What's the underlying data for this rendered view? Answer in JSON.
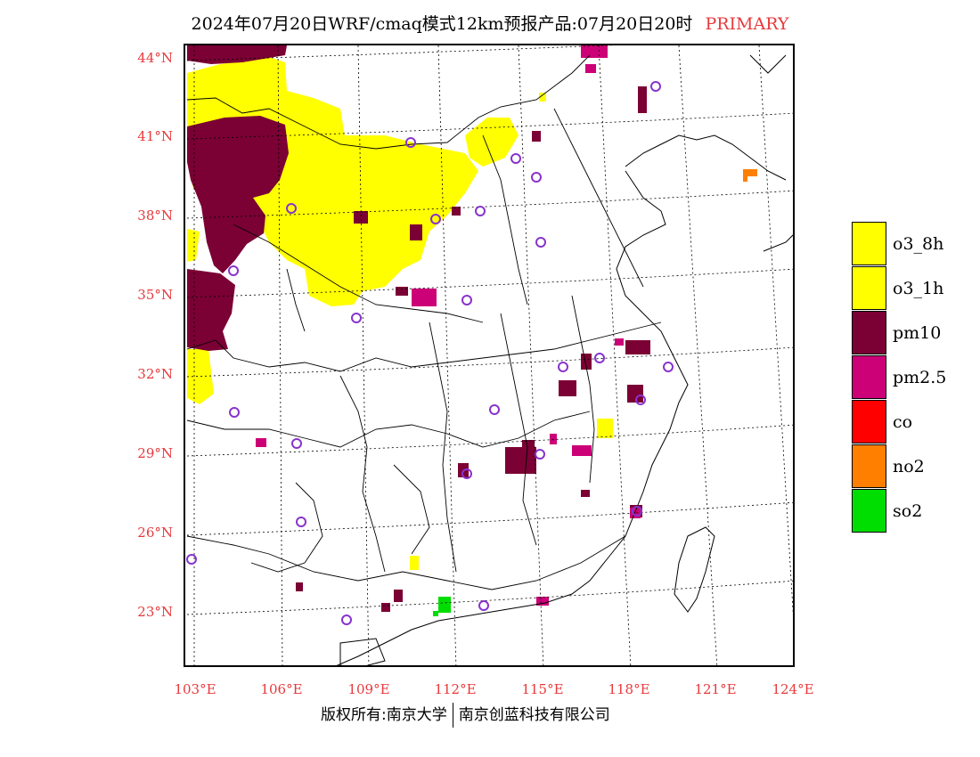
{
  "title": "2024年07月20日WRF/cmaq模式12km预报产品:07月20日20时",
  "title_tag": "PRIMARY",
  "lat_labels": [
    "44°N",
    "41°N",
    "38°N",
    "35°N",
    "32°N",
    "29°N",
    "26°N",
    "23°N"
  ],
  "lon_labels": [
    "103°E",
    "106°E",
    "109°E",
    "112°E",
    "115°E",
    "118°E",
    "121°E",
    "124°E"
  ],
  "legend": [
    {
      "label": "o3_8h",
      "color": "#ffff00"
    },
    {
      "label": "o3_1h",
      "color": "#ffff00"
    },
    {
      "label": "pm10",
      "color": "#7b0034"
    },
    {
      "label": "pm2.5",
      "color": "#cc0077"
    },
    {
      "label": "co",
      "color": "#ff0000"
    },
    {
      "label": "no2",
      "color": "#ff7f00"
    },
    {
      "label": "so2",
      "color": "#00dd00"
    }
  ],
  "credit_left": "版权所有:南京大学",
  "credit_right": "南京创蓝科技有限公司"
}
